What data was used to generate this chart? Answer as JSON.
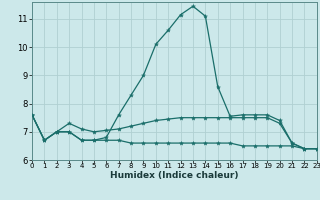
{
  "xlabel": "Humidex (Indice chaleur)",
  "background_color": "#cce8ea",
  "grid_color": "#b0d0d2",
  "line_color": "#1a6e6a",
  "xlim": [
    0,
    23
  ],
  "ylim": [
    6.0,
    11.6
  ],
  "yticks": [
    6,
    7,
    8,
    9,
    10,
    11
  ],
  "xticks": [
    0,
    1,
    2,
    3,
    4,
    5,
    6,
    7,
    8,
    9,
    10,
    11,
    12,
    13,
    14,
    15,
    16,
    17,
    18,
    19,
    20,
    21,
    22,
    23
  ],
  "series1_y": [
    7.6,
    6.7,
    7.0,
    7.0,
    6.7,
    6.7,
    6.8,
    7.6,
    8.3,
    9.0,
    10.1,
    10.6,
    11.15,
    11.45,
    11.1,
    8.6,
    7.55,
    7.6,
    7.6,
    7.6,
    7.4,
    6.6,
    6.4,
    6.4
  ],
  "series2_y": [
    7.6,
    6.7,
    7.0,
    7.3,
    7.1,
    7.0,
    7.05,
    7.1,
    7.2,
    7.3,
    7.4,
    7.45,
    7.5,
    7.5,
    7.5,
    7.5,
    7.5,
    7.5,
    7.5,
    7.5,
    7.3,
    6.6,
    6.4,
    6.4
  ],
  "series3_y": [
    7.6,
    6.7,
    7.0,
    7.0,
    6.7,
    6.7,
    6.7,
    6.7,
    6.6,
    6.6,
    6.6,
    6.6,
    6.6,
    6.6,
    6.6,
    6.6,
    6.6,
    6.5,
    6.5,
    6.5,
    6.5,
    6.5,
    6.4,
    6.4
  ],
  "xlabel_fontsize": 6.5,
  "ytick_fontsize": 6,
  "xtick_fontsize": 5
}
